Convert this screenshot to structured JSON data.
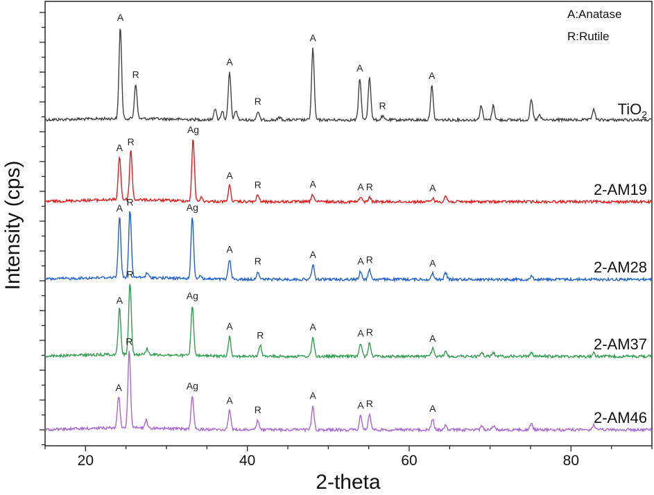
{
  "chart_data": {
    "type": "line",
    "title": "",
    "xlabel": "2-theta",
    "ylabel": "Intensity (cps)",
    "xlim": [
      15,
      90
    ],
    "x_ticks": [
      20,
      40,
      60,
      80
    ],
    "y_ticks_shown": false,
    "grid": false,
    "legend_placement": "top-right",
    "legend": [
      "A:Anatase",
      "R:Rutile"
    ],
    "series": [
      {
        "name": "TiO",
        "name_subscript": "2",
        "color": "#404040",
        "offset": 4,
        "peaks": [
          {
            "x": 24.3,
            "h": 1.0,
            "label": "A"
          },
          {
            "x": 26.2,
            "h": 0.38,
            "label": "R"
          },
          {
            "x": 36.0,
            "h": 0.12
          },
          {
            "x": 36.9,
            "h": 0.1
          },
          {
            "x": 37.8,
            "h": 0.52,
            "label": "A"
          },
          {
            "x": 38.6,
            "h": 0.1
          },
          {
            "x": 41.3,
            "h": 0.09,
            "label": "R"
          },
          {
            "x": 44.0,
            "h": 0.03
          },
          {
            "x": 48.1,
            "h": 0.78,
            "label": "A"
          },
          {
            "x": 53.9,
            "h": 0.45,
            "label": "A"
          },
          {
            "x": 55.1,
            "h": 0.47
          },
          {
            "x": 56.7,
            "h": 0.04,
            "label": "R"
          },
          {
            "x": 62.8,
            "h": 0.37,
            "label": "A"
          },
          {
            "x": 68.9,
            "h": 0.16
          },
          {
            "x": 70.4,
            "h": 0.16
          },
          {
            "x": 75.1,
            "h": 0.22
          },
          {
            "x": 76.1,
            "h": 0.05
          },
          {
            "x": 82.8,
            "h": 0.12
          }
        ]
      },
      {
        "name": "2-AM19",
        "color": "#e8191a",
        "offset": 3,
        "peaks": [
          {
            "x": 24.2,
            "h": 0.6,
            "label": "A"
          },
          {
            "x": 25.6,
            "h": 0.68,
            "label": "R"
          },
          {
            "x": 33.3,
            "h": 0.85,
            "label": "Ag"
          },
          {
            "x": 34.3,
            "h": 0.05
          },
          {
            "x": 37.8,
            "h": 0.22,
            "label": "A"
          },
          {
            "x": 41.3,
            "h": 0.09,
            "label": "R"
          },
          {
            "x": 48.1,
            "h": 0.1,
            "label": "A"
          },
          {
            "x": 54.0,
            "h": 0.06,
            "label": "A"
          },
          {
            "x": 55.1,
            "h": 0.06,
            "label": "R"
          },
          {
            "x": 62.9,
            "h": 0.05,
            "label": "A"
          },
          {
            "x": 64.5,
            "h": 0.08
          }
        ]
      },
      {
        "name": "2-AM28",
        "color": "#1f5fd6",
        "offset": 2,
        "peaks": [
          {
            "x": 24.2,
            "h": 0.84,
            "label": "A"
          },
          {
            "x": 25.5,
            "h": 0.92,
            "label": "R"
          },
          {
            "x": 27.6,
            "h": 0.06
          },
          {
            "x": 33.2,
            "h": 0.85,
            "label": "Ag"
          },
          {
            "x": 34.2,
            "h": 0.05
          },
          {
            "x": 37.8,
            "h": 0.27,
            "label": "A"
          },
          {
            "x": 41.3,
            "h": 0.11,
            "label": "R"
          },
          {
            "x": 48.1,
            "h": 0.2,
            "label": "A"
          },
          {
            "x": 54.0,
            "h": 0.11,
            "label": "A"
          },
          {
            "x": 55.1,
            "h": 0.13,
            "label": "R"
          },
          {
            "x": 62.9,
            "h": 0.08,
            "label": "A"
          },
          {
            "x": 64.5,
            "h": 0.09
          },
          {
            "x": 75.1,
            "h": 0.05
          }
        ]
      },
      {
        "name": "2-AM37",
        "color": "#2f9e4f",
        "offset": 1,
        "peaks": [
          {
            "x": 24.2,
            "h": 0.6,
            "label": "A"
          },
          {
            "x": 25.5,
            "h": 0.94,
            "label": "R"
          },
          {
            "x": 27.6,
            "h": 0.08
          },
          {
            "x": 33.2,
            "h": 0.66,
            "label": "Ag"
          },
          {
            "x": 37.8,
            "h": 0.26,
            "label": "A"
          },
          {
            "x": 41.6,
            "h": 0.14,
            "label": "R"
          },
          {
            "x": 48.1,
            "h": 0.25,
            "label": "A"
          },
          {
            "x": 54.0,
            "h": 0.17,
            "label": "A"
          },
          {
            "x": 55.1,
            "h": 0.18,
            "label": "R"
          },
          {
            "x": 62.9,
            "h": 0.1,
            "label": "A"
          },
          {
            "x": 64.5,
            "h": 0.06
          },
          {
            "x": 69.0,
            "h": 0.05
          },
          {
            "x": 70.4,
            "h": 0.05
          },
          {
            "x": 75.1,
            "h": 0.06
          },
          {
            "x": 82.8,
            "h": 0.04
          }
        ]
      },
      {
        "name": "2-AM46",
        "color": "#a865d8",
        "offset": 0,
        "peaks": [
          {
            "x": 24.1,
            "h": 0.4,
            "label": "A"
          },
          {
            "x": 25.4,
            "h": 0.98,
            "label": "R"
          },
          {
            "x": 27.5,
            "h": 0.1
          },
          {
            "x": 33.2,
            "h": 0.42,
            "label": "Ag"
          },
          {
            "x": 37.8,
            "h": 0.24,
            "label": "A"
          },
          {
            "x": 41.3,
            "h": 0.12,
            "label": "R"
          },
          {
            "x": 48.1,
            "h": 0.3,
            "label": "A"
          },
          {
            "x": 54.0,
            "h": 0.18,
            "label": "A"
          },
          {
            "x": 55.1,
            "h": 0.2,
            "label": "R"
          },
          {
            "x": 62.9,
            "h": 0.14,
            "label": "A"
          },
          {
            "x": 64.5,
            "h": 0.05
          },
          {
            "x": 69.0,
            "h": 0.05
          },
          {
            "x": 70.4,
            "h": 0.05
          },
          {
            "x": 75.1,
            "h": 0.08
          },
          {
            "x": 82.8,
            "h": 0.06
          }
        ]
      }
    ]
  }
}
